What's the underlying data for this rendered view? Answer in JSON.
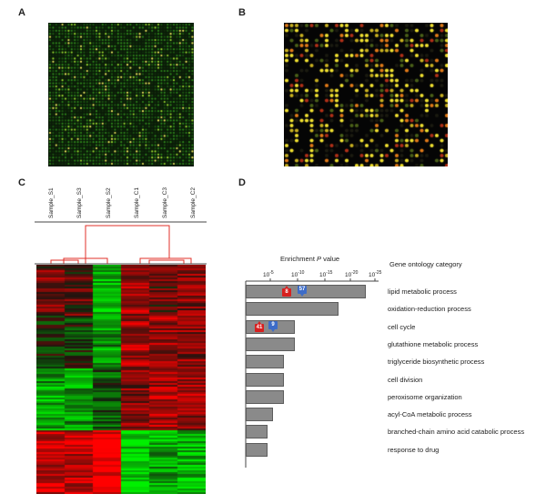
{
  "panels": {
    "a": "A",
    "b": "B",
    "c": "C",
    "d": "D"
  },
  "heatmap": {
    "samples": [
      "Sample_S1",
      "Sample_S3",
      "Sample_S2",
      "Sample_C1",
      "Sample_C3",
      "Sample_C2"
    ]
  },
  "colors": {
    "up": "#e01010",
    "down": "#10d010",
    "bar": "#8a8a8a",
    "dendrogram": "#e0302a"
  },
  "enrichment": {
    "axis_label_prefix": "Enrichment ",
    "axis_label_var": "P",
    "axis_label_suffix": " value",
    "category_header": "Gene ontology category",
    "ticks": [
      {
        "base": "10",
        "exp": "-5"
      },
      {
        "base": "10",
        "exp": "-10"
      },
      {
        "base": "10",
        "exp": "-15"
      },
      {
        "base": "10",
        "exp": "-20"
      },
      {
        "base": "10",
        "exp": "-25"
      }
    ]
  },
  "chart_data": {
    "type": "bar",
    "orientation": "horizontal",
    "x_scale": "log",
    "xlim": [
      1,
      1e-25
    ],
    "categories": [
      "lipid metabolic process",
      "oxidation-reduction process",
      "cell cycle",
      "glutathione metabolic process",
      "triglyceride biosynthetic process",
      "cell division",
      "peroxisome organization",
      "acyl-CoA metabolic process",
      "branched-chain amino acid catabolic process",
      "response to drug"
    ],
    "values": [
      1e-22,
      1e-17,
      1e-09,
      1e-09,
      1e-07,
      1e-07,
      1e-07,
      1e-05,
      0.0001,
      0.0001
    ],
    "annotations": [
      {
        "category": "lipid metabolic process",
        "up": "8",
        "down": "57"
      },
      {
        "category": "cell cycle",
        "up": "41",
        "down": "9"
      }
    ]
  }
}
